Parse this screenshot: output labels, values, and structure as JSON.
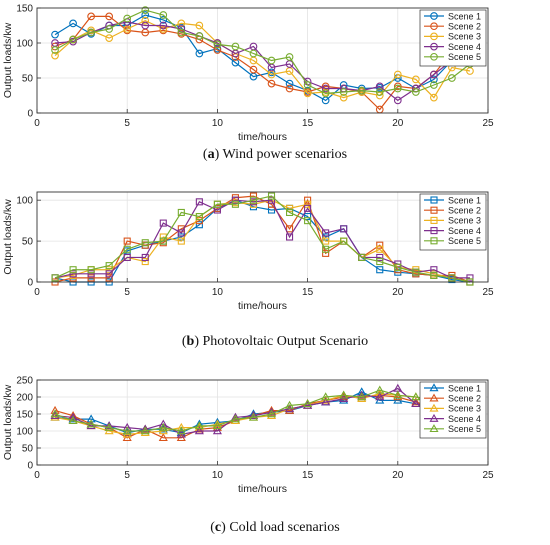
{
  "captions": [
    {
      "letter": "a",
      "text": " Wind power scenarios"
    },
    {
      "letter": "b",
      "text": " Photovoltaic Output Scenario"
    },
    {
      "letter": "c",
      "text": " Cold load scenarios"
    }
  ],
  "colors": [
    "#0072BD",
    "#D95319",
    "#EDB120",
    "#7E2F8E",
    "#77AC30"
  ],
  "chart_data": [
    {
      "type": "line",
      "marker": "circle",
      "title": "",
      "xlabel": "time/hours",
      "ylabel": "Output loads/kw",
      "xlim": [
        0,
        25
      ],
      "ylim": [
        0,
        150
      ],
      "xticks": [
        0,
        5,
        10,
        15,
        20,
        25
      ],
      "yticks": [
        0,
        50,
        100,
        150
      ],
      "grid": true,
      "legend": "top-right",
      "x": [
        1,
        2,
        3,
        4,
        5,
        6,
        7,
        8,
        9,
        10,
        11,
        12,
        13,
        14,
        15,
        16,
        17,
        18,
        19,
        20,
        21,
        22,
        23,
        24
      ],
      "series": [
        {
          "name": "Scene 1",
          "values": [
            112,
            128,
            113,
            125,
            125,
            140,
            133,
            122,
            85,
            92,
            72,
            52,
            58,
            42,
            32,
            18,
            40,
            35,
            36,
            50,
            35,
            48,
            75,
            85
          ]
        },
        {
          "name": "Scene 2",
          "values": [
            95,
            105,
            138,
            138,
            118,
            115,
            118,
            113,
            105,
            90,
            80,
            62,
            42,
            35,
            30,
            38,
            35,
            30,
            5,
            38,
            35,
            55,
            88,
            95
          ]
        },
        {
          "name": "Scene 3",
          "values": [
            82,
            105,
            118,
            107,
            120,
            132,
            120,
            128,
            125,
            100,
            85,
            75,
            55,
            60,
            28,
            30,
            22,
            30,
            25,
            55,
            48,
            22,
            65,
            60
          ]
        },
        {
          "name": "Scene 4",
          "values": [
            100,
            102,
            115,
            125,
            130,
            125,
            125,
            120,
            110,
            100,
            85,
            95,
            65,
            70,
            45,
            35,
            35,
            32,
            38,
            18,
            35,
            55,
            75,
            100
          ]
        },
        {
          "name": "Scene 5",
          "values": [
            90,
            105,
            115,
            120,
            135,
            147,
            140,
            115,
            110,
            98,
            95,
            85,
            75,
            80,
            40,
            28,
            30,
            32,
            30,
            35,
            30,
            40,
            50,
            70
          ]
        }
      ]
    },
    {
      "type": "line",
      "marker": "square",
      "title": "",
      "xlabel": "time/hours",
      "ylabel": "Output loads/kw",
      "xlim": [
        0,
        25
      ],
      "ylim": [
        0,
        110
      ],
      "xticks": [
        0,
        5,
        10,
        15,
        20,
        25
      ],
      "yticks": [
        0,
        50,
        100
      ],
      "grid": true,
      "legend": "top-right",
      "x": [
        1,
        2,
        3,
        4,
        5,
        6,
        7,
        8,
        9,
        10,
        11,
        12,
        13,
        14,
        15,
        16,
        17,
        18,
        19,
        20,
        21,
        22,
        23,
        24
      ],
      "series": [
        {
          "name": "Scene 1",
          "values": [
            5,
            0,
            0,
            0,
            38,
            45,
            50,
            55,
            70,
            90,
            100,
            92,
            88,
            90,
            80,
            55,
            65,
            30,
            15,
            12,
            10,
            8,
            3,
            0
          ]
        },
        {
          "name": "Scene 2",
          "values": [
            0,
            5,
            5,
            5,
            50,
            45,
            48,
            65,
            75,
            90,
            103,
            105,
            95,
            65,
            100,
            35,
            50,
            30,
            45,
            15,
            10,
            8,
            8,
            0
          ]
        },
        {
          "name": "Scene 3",
          "values": [
            5,
            8,
            15,
            15,
            30,
            25,
            55,
            50,
            80,
            95,
            97,
            95,
            100,
            90,
            95,
            50,
            50,
            30,
            40,
            18,
            15,
            10,
            5,
            0
          ]
        },
        {
          "name": "Scene 4",
          "values": [
            5,
            10,
            10,
            10,
            30,
            30,
            72,
            60,
            98,
            88,
            100,
            98,
            100,
            55,
            90,
            60,
            65,
            30,
            30,
            22,
            12,
            15,
            5,
            5
          ]
        },
        {
          "name": "Scene 5",
          "values": [
            5,
            15,
            15,
            20,
            40,
            48,
            50,
            85,
            80,
            95,
            95,
            100,
            105,
            85,
            75,
            40,
            50,
            30,
            25,
            18,
            12,
            8,
            5,
            0
          ]
        }
      ]
    },
    {
      "type": "line",
      "marker": "triangle",
      "title": "",
      "xlabel": "time/hours",
      "ylabel": "Output loads/kw",
      "xlim": [
        0,
        25
      ],
      "ylim": [
        0,
        250
      ],
      "xticks": [
        0,
        5,
        10,
        15,
        20,
        25
      ],
      "yticks": [
        0,
        50,
        100,
        150,
        200,
        250
      ],
      "grid": true,
      "legend": "top-right",
      "x": [
        1,
        2,
        3,
        4,
        5,
        6,
        7,
        8,
        9,
        10,
        11,
        12,
        13,
        14,
        15,
        16,
        17,
        18,
        19,
        20,
        21,
        22,
        23,
        24
      ],
      "series": [
        {
          "name": "Scene 1",
          "values": [
            140,
            135,
            135,
            115,
            95,
            105,
            105,
            95,
            120,
            125,
            130,
            150,
            155,
            160,
            175,
            185,
            190,
            215,
            190,
            190,
            180,
            165,
            160,
            150
          ]
        },
        {
          "name": "Scene 2",
          "values": [
            160,
            145,
            120,
            110,
            80,
            105,
            80,
            80,
            105,
            110,
            130,
            145,
            160,
            160,
            180,
            190,
            200,
            200,
            205,
            200,
            185,
            170,
            150,
            140
          ]
        },
        {
          "name": "Scene 3",
          "values": [
            140,
            130,
            115,
            100,
            90,
            95,
            100,
            110,
            110,
            120,
            130,
            140,
            145,
            165,
            175,
            190,
            205,
            195,
            210,
            205,
            200,
            185,
            175,
            145
          ]
        },
        {
          "name": "Scene 4",
          "values": [
            145,
            140,
            115,
            115,
            110,
            105,
            120,
            90,
            100,
            100,
            140,
            145,
            155,
            165,
            175,
            185,
            195,
            205,
            200,
            225,
            180,
            170,
            165,
            155
          ]
        },
        {
          "name": "Scene 5",
          "values": [
            150,
            130,
            120,
            110,
            100,
            100,
            110,
            100,
            115,
            115,
            135,
            140,
            150,
            175,
            180,
            200,
            205,
            200,
            220,
            205,
            200,
            190,
            175,
            175
          ]
        }
      ]
    }
  ]
}
